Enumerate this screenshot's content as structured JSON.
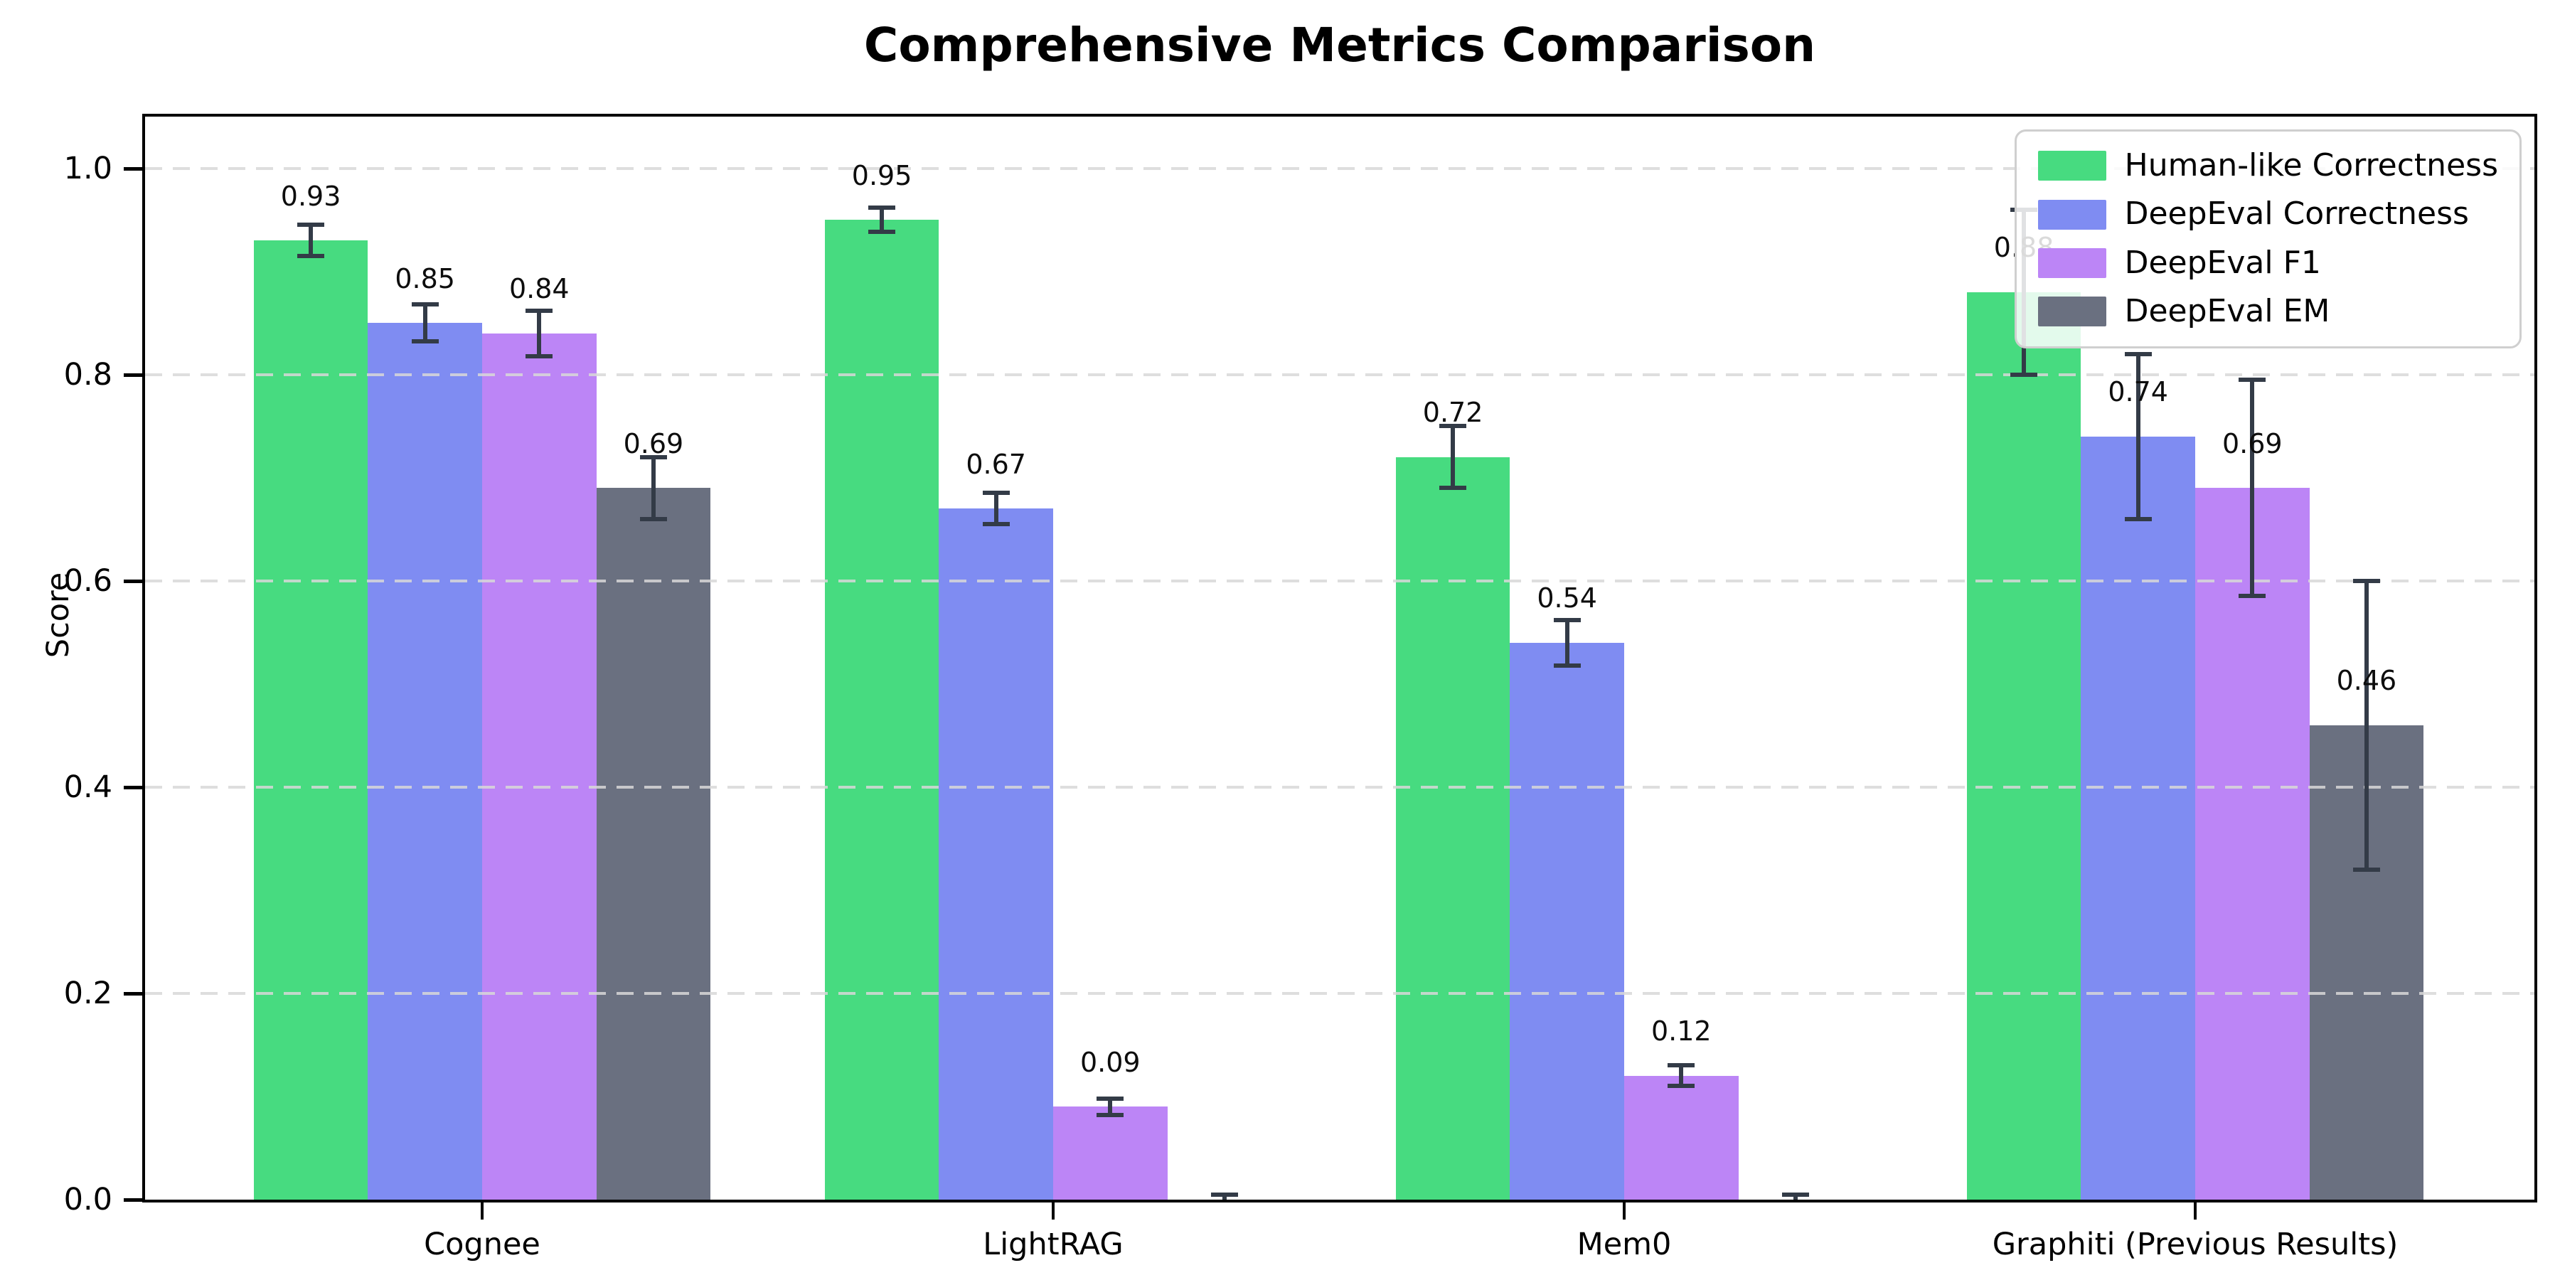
{
  "chart_data": {
    "type": "bar",
    "title": "Comprehensive Metrics Comparison",
    "ylabel": "Score",
    "xlabel": "",
    "ylim": [
      0,
      1.05
    ],
    "yticks": [
      0.0,
      0.2,
      0.4,
      0.6,
      0.8,
      1.0
    ],
    "ytick_labels": [
      "0.0",
      "0.2",
      "0.4",
      "0.6",
      "0.8",
      "1.0"
    ],
    "grid": "horizontal dashed, drawn over bars",
    "legend_position": "upper right",
    "categories": [
      "Cognee",
      "LightRAG",
      "Mem0",
      "Graphiti (Previous Results)"
    ],
    "series": [
      {
        "name": "Human-like Correctness",
        "color": "#47db80",
        "values": [
          0.93,
          0.95,
          0.72,
          0.88
        ],
        "errors": [
          0.015,
          0.012,
          0.03,
          0.08
        ],
        "value_labels": [
          "0.93",
          "0.95",
          "0.72",
          "0.88"
        ]
      },
      {
        "name": "DeepEval Correctness",
        "color": "#7f8cf2",
        "values": [
          0.85,
          0.67,
          0.54,
          0.74
        ],
        "errors": [
          0.018,
          0.015,
          0.022,
          0.08
        ],
        "value_labels": [
          "0.85",
          "0.67",
          "0.54",
          "0.74"
        ]
      },
      {
        "name": "DeepEval F1",
        "color": "#bc85f6",
        "values": [
          0.84,
          0.09,
          0.12,
          0.69
        ],
        "errors": [
          0.022,
          0.008,
          0.01,
          0.105
        ],
        "value_labels": [
          "0.84",
          "0.09",
          "0.12",
          "0.69"
        ]
      },
      {
        "name": "DeepEval EM",
        "color": "#6a7080",
        "values": [
          0.69,
          0.0,
          0.0,
          0.46
        ],
        "errors": [
          0.03,
          0.005,
          0.005,
          0.14
        ],
        "value_labels": [
          "0.69",
          "",
          "",
          "0.46"
        ]
      }
    ],
    "error_bar_color": "#333b47",
    "grid_color": "#d8d8d8",
    "axis_color": "#000000"
  }
}
